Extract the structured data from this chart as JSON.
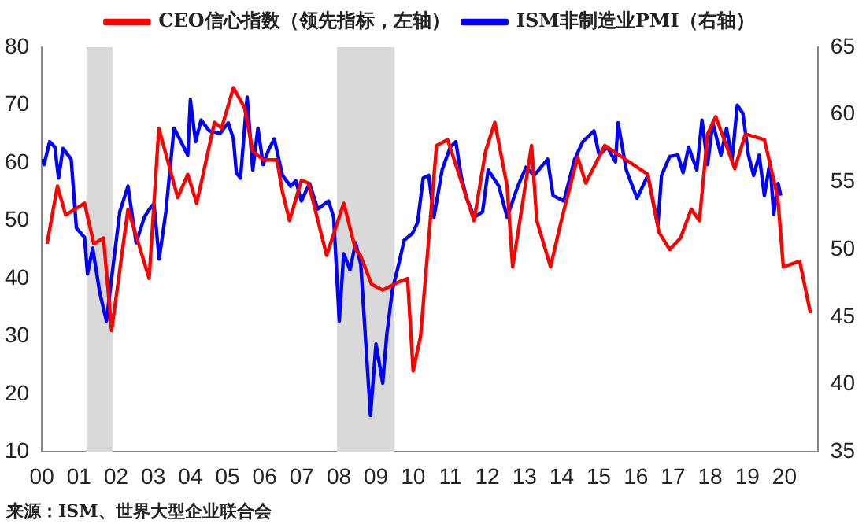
{
  "chart_data": {
    "type": "line",
    "legend": "top",
    "marker": "none",
    "grid": false,
    "xlim": [
      2000,
      2020.9
    ],
    "xticks": [
      {
        "value": 2000,
        "label": "00"
      },
      {
        "value": 2001,
        "label": "01"
      },
      {
        "value": 2002,
        "label": "02"
      },
      {
        "value": 2003,
        "label": "03"
      },
      {
        "value": 2004,
        "label": "04"
      },
      {
        "value": 2005,
        "label": "05"
      },
      {
        "value": 2006,
        "label": "06"
      },
      {
        "value": 2007,
        "label": "07"
      },
      {
        "value": 2008,
        "label": "08"
      },
      {
        "value": 2009,
        "label": "09"
      },
      {
        "value": 2010,
        "label": "10"
      },
      {
        "value": 2011,
        "label": "11"
      },
      {
        "value": 2012,
        "label": "12"
      },
      {
        "value": 2013,
        "label": "13"
      },
      {
        "value": 2014,
        "label": "14"
      },
      {
        "value": 2015,
        "label": "15"
      },
      {
        "value": 2016,
        "label": "16"
      },
      {
        "value": 2017,
        "label": "17"
      },
      {
        "value": 2018,
        "label": "18"
      },
      {
        "value": 2019,
        "label": "19"
      },
      {
        "value": 2020,
        "label": "20"
      }
    ],
    "ylim": [
      10,
      80
    ],
    "yticks": [
      10,
      20,
      30,
      40,
      50,
      60,
      70,
      80
    ],
    "y2lim": [
      35,
      65
    ],
    "y2ticks": [
      35,
      40,
      45,
      50,
      55,
      60,
      65
    ],
    "bands": [
      {
        "axis": "x",
        "from": 2001.2,
        "to": 2001.9,
        "color": "#d9d9d9"
      },
      {
        "axis": "x",
        "from": 2007.95,
        "to": 2009.5,
        "color": "#d9d9d9"
      }
    ],
    "annotations": [
      "来源：ISM、世界大型企业联合会"
    ],
    "series": [
      {
        "name": "CEO信心指数（领先指标，左轴）",
        "color": "#ff0000",
        "x": [
          2000.14,
          2000.42,
          2000.64,
          2001.15,
          2001.4,
          2001.66,
          2001.88,
          2002.32,
          2002.89,
          2003.15,
          2003.66,
          2003.93,
          2004.17,
          2004.65,
          2004.84,
          2005.16,
          2005.46,
          2005.68,
          2005.97,
          2006.33,
          2006.48,
          2006.67,
          2006.99,
          2007.18,
          2007.67,
          2008.13,
          2008.45,
          2008.58,
          2008.88,
          2009.18,
          2009.61,
          2009.85,
          2010.0,
          2010.2,
          2010.63,
          2010.93,
          2011.64,
          2011.95,
          2012.2,
          2012.53,
          2012.68,
          2013.19,
          2013.33,
          2013.7,
          2013.99,
          2014.43,
          2014.65,
          2015.16,
          2015.74,
          2016.32,
          2016.62,
          2016.91,
          2017.2,
          2017.49,
          2017.71,
          2017.93,
          2018.15,
          2018.66,
          2018.95,
          2019.46,
          2019.82,
          2019.97,
          2020.41,
          2020.7
        ],
        "values": [
          46,
          56,
          51,
          53,
          46,
          47,
          31,
          52,
          40,
          66,
          54,
          58,
          53,
          67,
          66,
          73,
          69.5,
          62,
          60.5,
          60.5,
          55,
          50,
          57,
          56.5,
          44,
          53,
          45,
          44,
          39,
          38,
          39.4,
          40,
          24,
          30,
          63,
          64,
          50,
          62,
          67,
          56,
          42,
          63,
          50,
          42,
          50,
          61,
          56.5,
          63,
          60.5,
          58,
          48,
          45,
          47,
          52,
          50,
          65,
          68,
          59,
          65,
          64,
          54,
          42,
          43,
          34
        ]
      },
      {
        "name": "ISM非制造业PMI（右轴）",
        "color": "#0000ff",
        "axis": "y2",
        "x": [
          2000.0,
          2000.06,
          2000.21,
          2000.35,
          2000.45,
          2000.57,
          2000.79,
          2000.93,
          2001.15,
          2001.23,
          2001.37,
          2001.56,
          2001.74,
          2001.96,
          2002.1,
          2002.32,
          2002.54,
          2002.76,
          2002.9,
          2003.02,
          2003.16,
          2003.34,
          2003.56,
          2003.71,
          2003.93,
          2004.0,
          2004.14,
          2004.29,
          2004.51,
          2004.8,
          2005.02,
          2005.16,
          2005.24,
          2005.35,
          2005.46,
          2005.53,
          2005.68,
          2005.82,
          2005.96,
          2006.11,
          2006.26,
          2006.48,
          2006.7,
          2006.84,
          2006.99,
          2007.21,
          2007.43,
          2007.72,
          2007.86,
          2008.01,
          2008.13,
          2008.3,
          2008.45,
          2008.59,
          2008.85,
          2009.0,
          2009.18,
          2009.29,
          2009.44,
          2009.61,
          2009.76,
          2009.98,
          2010.12,
          2010.27,
          2010.42,
          2010.56,
          2010.78,
          2011.0,
          2011.15,
          2011.29,
          2011.44,
          2011.65,
          2011.87,
          2012.02,
          2012.31,
          2012.53,
          2012.82,
          2013.04,
          2013.26,
          2013.62,
          2013.77,
          2014.06,
          2014.35,
          2014.57,
          2014.87,
          2015.01,
          2015.23,
          2015.45,
          2015.52,
          2015.74,
          2016.03,
          2016.32,
          2016.59,
          2016.69,
          2016.91,
          2017.13,
          2017.27,
          2017.42,
          2017.64,
          2017.78,
          2017.93,
          2018.07,
          2018.29,
          2018.44,
          2018.59,
          2018.73,
          2018.88,
          2019.03,
          2019.17,
          2019.32,
          2019.46,
          2019.61,
          2019.71,
          2019.83,
          2019.9
        ],
        "values": [
          56.7,
          56.3,
          58.0,
          57.6,
          55.3,
          57.5,
          56.7,
          51.6,
          50.9,
          48.2,
          50.1,
          46.8,
          44.7,
          49.7,
          52.8,
          54.7,
          50.5,
          52.4,
          53.0,
          53.4,
          49.3,
          52.8,
          59.0,
          58.2,
          57.0,
          61.1,
          58.0,
          59.6,
          58.8,
          58.6,
          59.4,
          58.2,
          55.7,
          55.3,
          59.0,
          61.3,
          55.9,
          59.0,
          56.3,
          57.4,
          58.2,
          55.5,
          54.7,
          55.1,
          53.6,
          54.9,
          53.0,
          53.6,
          52.4,
          44.7,
          49.7,
          48.5,
          50.5,
          48.9,
          37.7,
          43.0,
          40.1,
          43.7,
          47.0,
          48.9,
          50.7,
          51.2,
          52.0,
          55.3,
          55.5,
          52.4,
          55.9,
          57.6,
          58.0,
          55.5,
          53.8,
          52.4,
          52.8,
          55.9,
          54.7,
          52.4,
          54.7,
          56.1,
          55.5,
          56.7,
          54.0,
          53.6,
          56.7,
          58.0,
          58.8,
          57.0,
          57.6,
          56.5,
          59.4,
          55.9,
          53.8,
          55.5,
          51.8,
          55.5,
          56.9,
          57.0,
          55.7,
          57.6,
          55.9,
          59.6,
          56.3,
          59.4,
          57.0,
          59.0,
          56.7,
          60.7,
          60.1,
          57.0,
          55.5,
          57.0,
          54.0,
          56.5,
          52.6,
          54.9,
          54.0
        ]
      }
    ]
  }
}
